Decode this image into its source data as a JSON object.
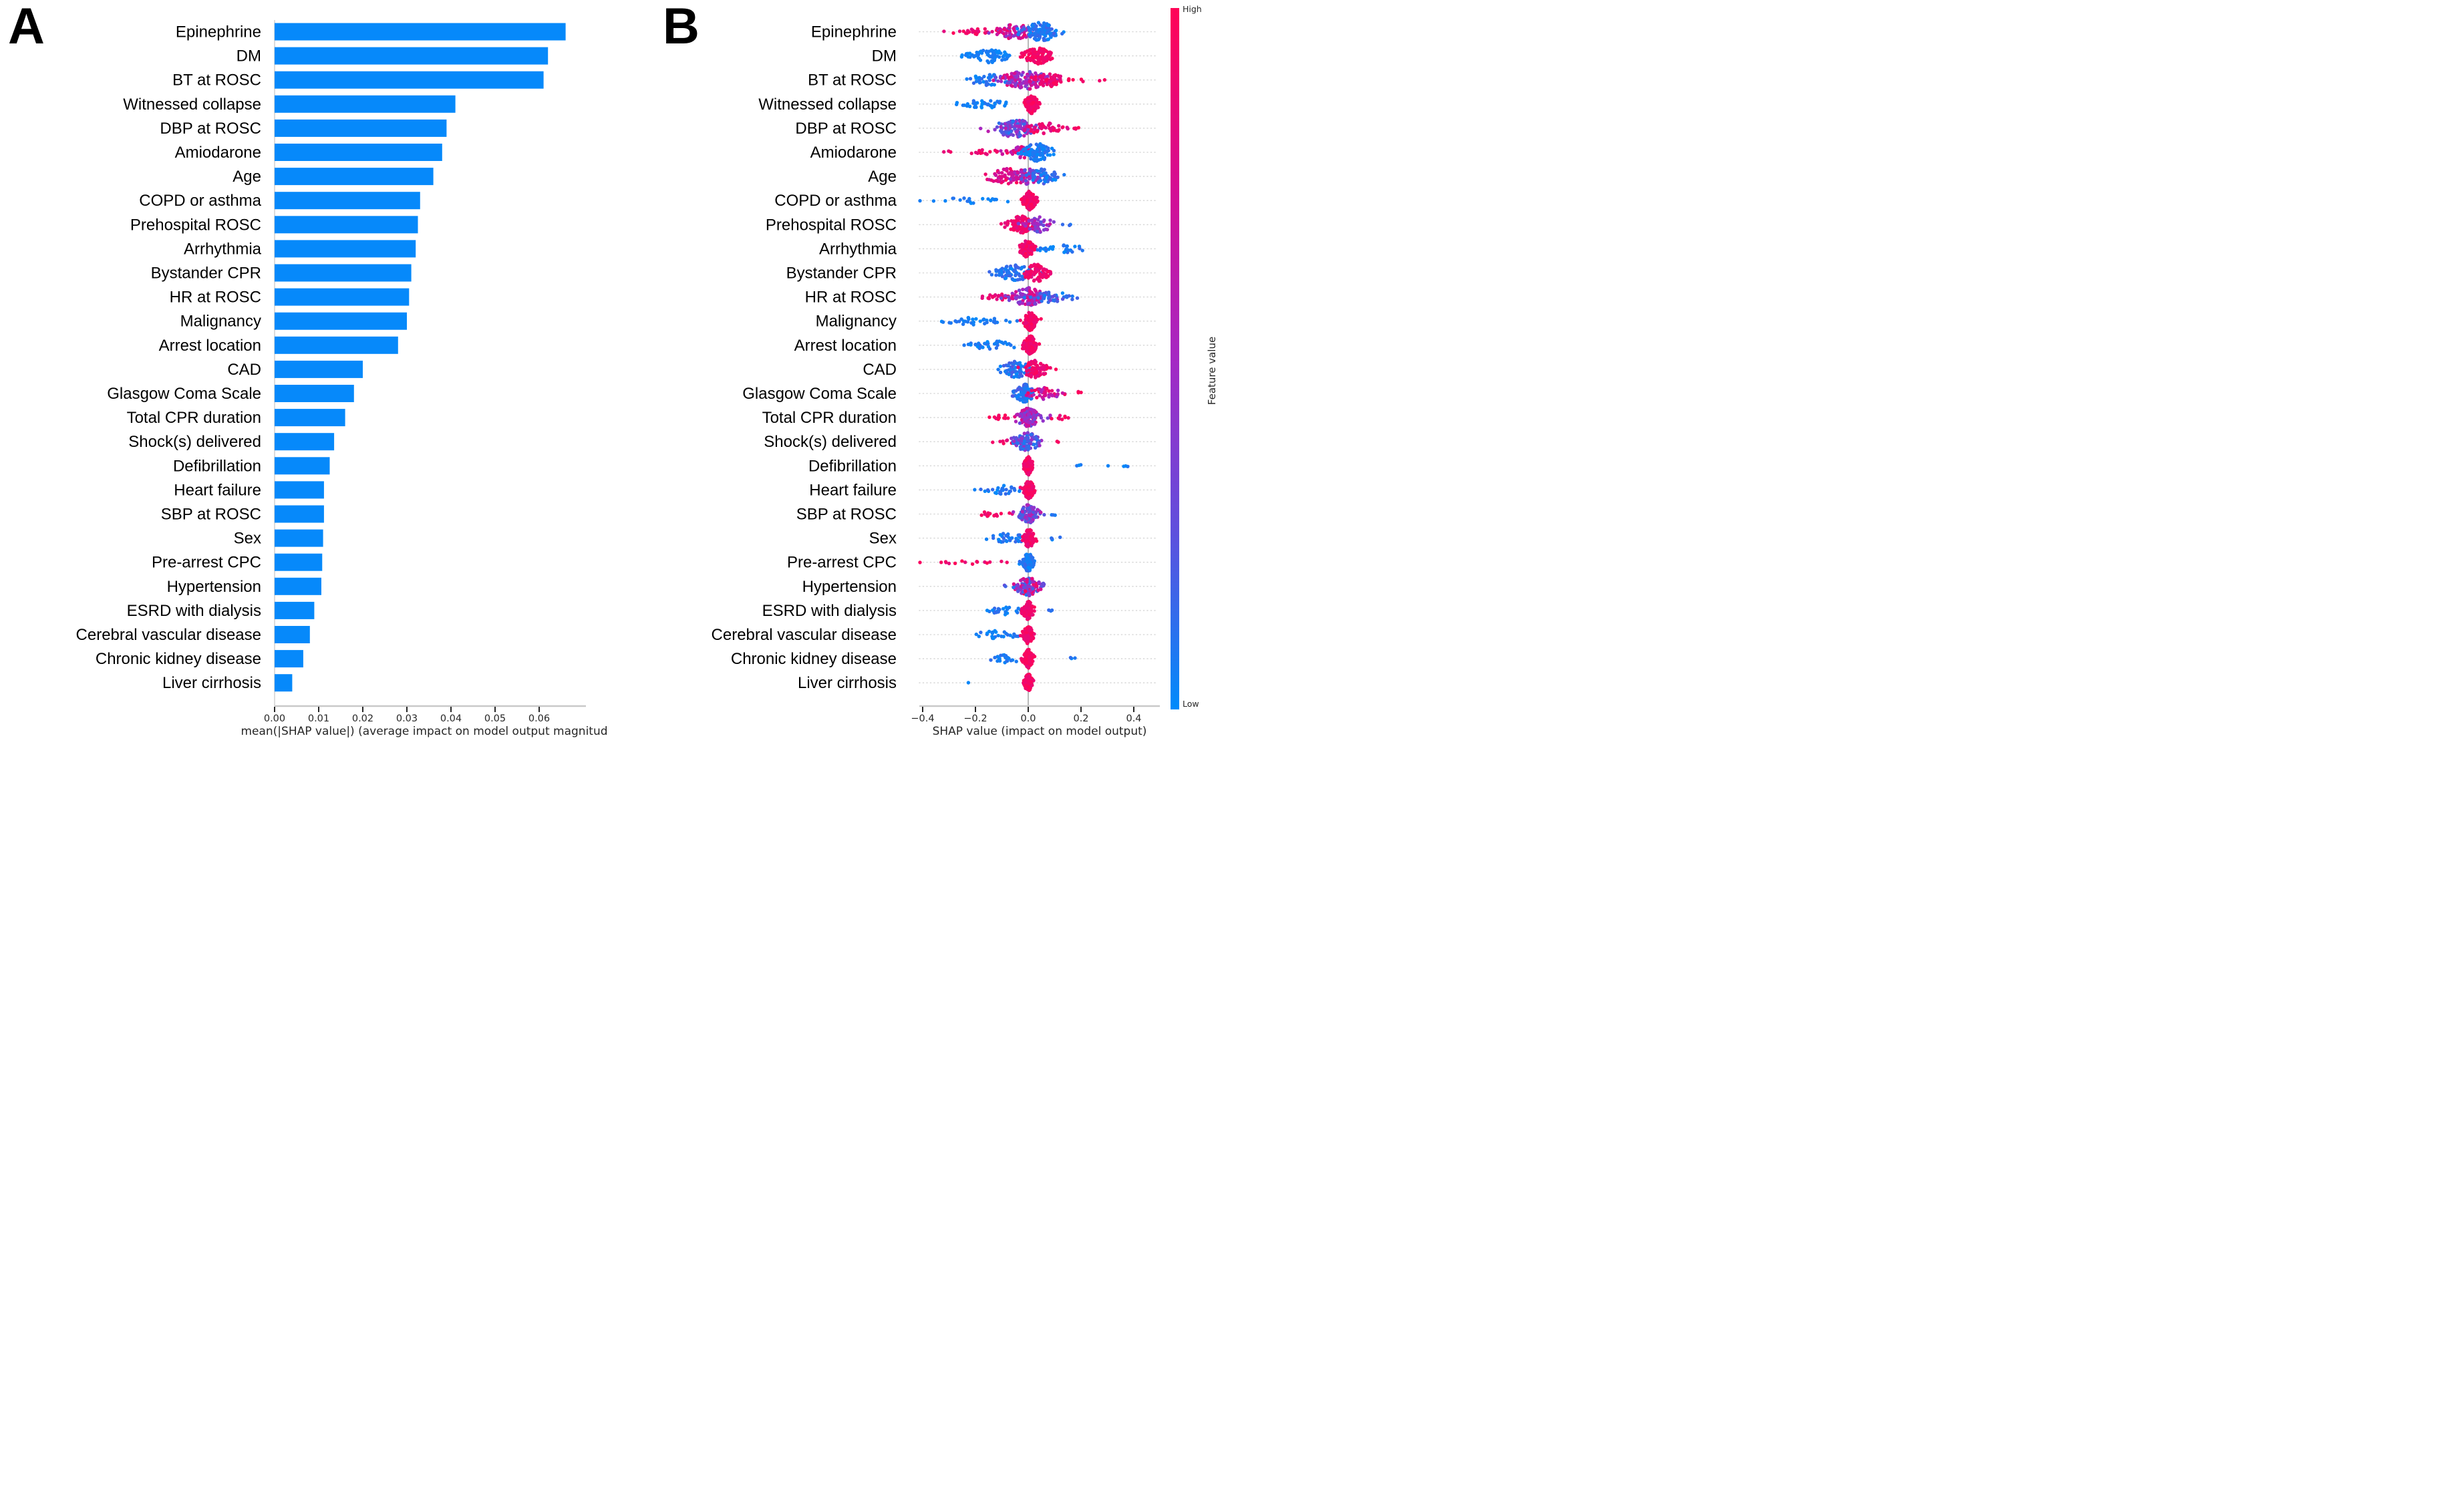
{
  "figure": {
    "panels": [
      {
        "label": "A"
      },
      {
        "label": "B"
      }
    ],
    "background": "#ffffff"
  },
  "chart_data": [
    {
      "type": "bar",
      "orientation": "horizontal",
      "title": "",
      "panel": "A",
      "categories": [
        "Epinephrine",
        "DM",
        "BT at ROSC",
        "Witnessed collapse",
        "DBP at ROSC",
        "Amiodarone",
        "Age",
        "COPD or asthma",
        "Prehospital ROSC",
        "Arrhythmia",
        "Bystander CPR",
        "HR at ROSC",
        "Malignancy",
        "Arrest location",
        "CAD",
        "Glasgow Coma Scale",
        "Total CPR duration",
        "Shock(s) delivered",
        "Defibrillation",
        "Heart failure",
        "SBP at ROSC",
        "Sex",
        "Pre-arrest CPC",
        "Hypertension",
        "ESRD with dialysis",
        "Cerebral vascular disease",
        "Chronic kidney disease",
        "Liver cirrhosis"
      ],
      "values": [
        0.066,
        0.062,
        0.061,
        0.041,
        0.039,
        0.038,
        0.036,
        0.033,
        0.0325,
        0.032,
        0.031,
        0.0305,
        0.03,
        0.028,
        0.02,
        0.018,
        0.016,
        0.0135,
        0.0125,
        0.0112,
        0.0112,
        0.011,
        0.0108,
        0.0106,
        0.009,
        0.008,
        0.0065,
        0.004
      ],
      "xlabel": "mean(|SHAP value|) (average impact on model output magnitud",
      "xticks": [
        0,
        0.01,
        0.02,
        0.03,
        0.04,
        0.05,
        0.06
      ],
      "xtick_labels": [
        "0.00",
        "0.01",
        "0.02",
        "0.03",
        "0.04",
        "0.05",
        "0.06"
      ],
      "xlim": [
        0,
        0.0705
      ],
      "bar_color": "#0689fa",
      "grid": false
    },
    {
      "type": "scatter",
      "variant": "beeswarm-summary",
      "panel": "B",
      "xlabel": "SHAP value (impact on model output)",
      "xticks": [
        -0.4,
        -0.2,
        0,
        0.2,
        0.4
      ],
      "xtick_labels": [
        "−0.4",
        "−0.2",
        "0.0",
        "0.2",
        "0.4"
      ],
      "xlim": [
        -0.41,
        0.5
      ],
      "zero_line": true,
      "grid": "dotted-rows",
      "value_colormap": [
        "#008bfb",
        "#5e50dd",
        "#a528c3",
        "#d60d92",
        "#ff0457"
      ],
      "colorbar": {
        "label": "Feature value",
        "high": "High",
        "low": "Low",
        "stops_top_to_bottom": [
          "#ff0457",
          "#d60d92",
          "#a528c3",
          "#5e50dd",
          "#008bfb"
        ]
      },
      "rows": [
        {
          "feature": "Epinephrine",
          "clusters": [
            [
              -0.18,
              0.055,
              28,
              0.85,
              1,
              0.35
            ],
            [
              -0.05,
              0.04,
              70,
              0.45,
              0.95,
              0.8
            ],
            [
              0.05,
              0.038,
              110,
              0,
              0.25,
              1.0
            ]
          ]
        },
        {
          "feature": "DM",
          "clusters": [
            [
              -0.23,
              0.015,
              8,
              0,
              0.12,
              0.3
            ],
            [
              -0.14,
              0.035,
              60,
              0,
              0.12,
              0.75
            ],
            [
              0.035,
              0.026,
              110,
              0.9,
              1,
              1.0
            ]
          ]
        },
        {
          "feature": "BT at ROSC",
          "clusters": [
            [
              -0.15,
              0.05,
              45,
              0,
              0.2,
              0.6
            ],
            [
              -0.01,
              0.05,
              130,
              0.35,
              0.9,
              1.0
            ],
            [
              0.08,
              0.035,
              50,
              0.85,
              1,
              0.7
            ],
            [
              0.21,
              0.04,
              5,
              0.9,
              1,
              0.2
            ]
          ]
        },
        {
          "feature": "Witnessed collapse",
          "clusters": [
            [
              -0.17,
              0.05,
              40,
              0,
              0.15,
              0.45
            ],
            [
              0.012,
              0.013,
              110,
              0.9,
              1,
              1.0
            ]
          ]
        },
        {
          "feature": "DBP at ROSC",
          "clusters": [
            [
              -0.05,
              0.045,
              110,
              0.1,
              0.7,
              1.0
            ],
            [
              0.06,
              0.045,
              45,
              0.8,
              1,
              0.6
            ],
            [
              0.2,
              0.025,
              3,
              0.9,
              1,
              0.2
            ]
          ]
        },
        {
          "feature": "Amiodarone",
          "clusters": [
            [
              -0.18,
              0.07,
              20,
              0.85,
              1,
              0.3
            ],
            [
              -0.03,
              0.025,
              40,
              0.6,
              0.95,
              0.7
            ],
            [
              0.035,
              0.03,
              100,
              0,
              0.2,
              1.0
            ]
          ]
        },
        {
          "feature": "Age",
          "clusters": [
            [
              -0.07,
              0.045,
              70,
              0.75,
              1,
              0.9
            ],
            [
              0.0,
              0.03,
              60,
              0.3,
              0.8,
              0.9
            ],
            [
              0.055,
              0.035,
              50,
              0,
              0.3,
              0.8
            ]
          ]
        },
        {
          "feature": "COPD or asthma",
          "clusters": [
            [
              -0.23,
              0.075,
              20,
              0,
              0.15,
              0.3
            ],
            [
              0.005,
              0.013,
              110,
              0.88,
              1,
              1.0
            ]
          ]
        },
        {
          "feature": "Prehospital ROSC",
          "clusters": [
            [
              -0.03,
              0.025,
              90,
              0.85,
              1,
              0.95
            ],
            [
              0.04,
              0.03,
              60,
              0.3,
              0.75,
              0.85
            ],
            [
              0.14,
              0.012,
              3,
              0,
              0.2,
              0.2
            ]
          ]
        },
        {
          "feature": "Arrhythmia",
          "clusters": [
            [
              0.13,
              0.055,
              32,
              0,
              0.2,
              0.4
            ],
            [
              -0.005,
              0.013,
              100,
              0.85,
              1,
              1.0
            ]
          ]
        },
        {
          "feature": "Bystander CPR",
          "clusters": [
            [
              -0.05,
              0.035,
              80,
              0,
              0.25,
              0.9
            ],
            [
              0.03,
              0.025,
              85,
              0.85,
              1,
              0.95
            ]
          ]
        },
        {
          "feature": "HR at ROSC",
          "clusters": [
            [
              -0.12,
              0.03,
              22,
              0.85,
              1,
              0.4
            ],
            [
              0.0,
              0.035,
              110,
              0.4,
              0.9,
              1.0
            ],
            [
              0.09,
              0.045,
              40,
              0,
              0.45,
              0.6
            ]
          ]
        },
        {
          "feature": "Malignancy",
          "clusters": [
            [
              -0.2,
              0.065,
              35,
              0,
              0.15,
              0.4
            ],
            [
              0.008,
              0.013,
              110,
              0.88,
              1,
              1.0
            ]
          ]
        },
        {
          "feature": "Arrest location",
          "clusters": [
            [
              -0.13,
              0.055,
              40,
              0,
              0.18,
              0.45
            ],
            [
              0.008,
              0.013,
              110,
              0.88,
              1,
              1.0
            ]
          ]
        },
        {
          "feature": "CAD",
          "clusters": [
            [
              -0.045,
              0.03,
              75,
              0,
              0.3,
              0.9
            ],
            [
              0.025,
              0.025,
              75,
              0.85,
              1,
              0.95
            ]
          ]
        },
        {
          "feature": "Glasgow Coma Scale",
          "clusters": [
            [
              -0.015,
              0.02,
              100,
              0,
              0.3,
              1.0
            ],
            [
              0.06,
              0.035,
              45,
              0.55,
              1,
              0.65
            ],
            [
              0.19,
              0.012,
              3,
              0.9,
              1,
              0.2
            ]
          ]
        },
        {
          "feature": "Total CPR duration",
          "clusters": [
            [
              -0.1,
              0.022,
              12,
              0.85,
              1,
              0.3
            ],
            [
              0.0,
              0.026,
              110,
              0.35,
              0.85,
              1.0
            ],
            [
              0.12,
              0.02,
              8,
              0.85,
              1,
              0.25
            ]
          ]
        },
        {
          "feature": "Shock(s) delivered",
          "clusters": [
            [
              -0.08,
              0.018,
              7,
              0.85,
              1,
              0.25
            ],
            [
              -0.005,
              0.028,
              110,
              0.05,
              0.6,
              1.0
            ],
            [
              0.11,
              0.01,
              2,
              0.9,
              1,
              0.15
            ]
          ]
        },
        {
          "feature": "Defibrillation",
          "clusters": [
            [
              0.25,
              0.12,
              7,
              0,
              0.15,
              0.12
            ],
            [
              0.0,
              0.009,
              100,
              0.88,
              1,
              1.0
            ]
          ]
        },
        {
          "feature": "Heart failure",
          "clusters": [
            [
              -0.1,
              0.045,
              30,
              0,
              0.2,
              0.5
            ],
            [
              0.003,
              0.011,
              100,
              0.88,
              1,
              1.0
            ]
          ]
        },
        {
          "feature": "SBP at ROSC",
          "clusters": [
            [
              -0.13,
              0.035,
              14,
              0.85,
              1,
              0.3
            ],
            [
              0.0,
              0.022,
              100,
              0.2,
              0.75,
              1.0
            ],
            [
              0.1,
              0.01,
              3,
              0,
              0.2,
              0.15
            ]
          ]
        },
        {
          "feature": "Sex",
          "clusters": [
            [
              -0.07,
              0.04,
              35,
              0,
              0.25,
              0.55
            ],
            [
              0.003,
              0.012,
              100,
              0.88,
              1,
              1.0
            ],
            [
              0.1,
              0.018,
              5,
              0,
              0.2,
              0.2
            ]
          ]
        },
        {
          "feature": "Pre-arrest CPC",
          "clusters": [
            [
              -0.22,
              0.07,
              16,
              0.85,
              1,
              0.25
            ],
            [
              0.0,
              0.011,
              105,
              0,
              0.2,
              1.0
            ]
          ]
        },
        {
          "feature": "Hypertension",
          "clusters": [
            [
              0.0,
              0.026,
              120,
              0.1,
              1,
              1.0
            ]
          ]
        },
        {
          "feature": "ESRD with dialysis",
          "clusters": [
            [
              -0.09,
              0.035,
              26,
              0,
              0.2,
              0.45
            ],
            [
              0.0,
              0.011,
              100,
              0.88,
              1,
              1.0
            ],
            [
              0.1,
              0.012,
              3,
              0,
              0.2,
              0.18
            ]
          ]
        },
        {
          "feature": "Cerebral vascular disease",
          "clusters": [
            [
              -0.12,
              0.05,
              25,
              0,
              0.2,
              0.45
            ],
            [
              0.0,
              0.01,
              100,
              0.88,
              1,
              1.0
            ]
          ]
        },
        {
          "feature": "Chronic kidney disease",
          "clusters": [
            [
              -0.08,
              0.03,
              22,
              0,
              0.2,
              0.45
            ],
            [
              0.0,
              0.01,
              100,
              0.88,
              1,
              1.0
            ],
            [
              0.16,
              0.015,
              3,
              0,
              0.2,
              0.15
            ]
          ]
        },
        {
          "feature": "Liver cirrhosis",
          "clusters": [
            [
              -0.22,
              0.004,
              1,
              0,
              0.1,
              0.1
            ],
            [
              0.0,
              0.009,
              95,
              0.88,
              1,
              1.0
            ]
          ]
        }
      ]
    }
  ]
}
